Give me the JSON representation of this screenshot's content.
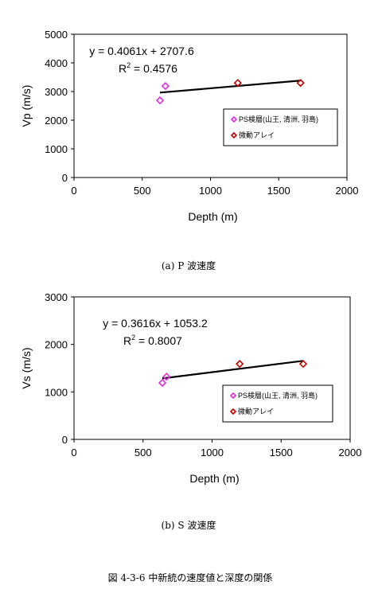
{
  "chart_data": [
    {
      "type": "scatter",
      "title": "",
      "xlabel": "Depth (m)",
      "ylabel": "Vp (m/s)",
      "xlim": [
        0,
        2000
      ],
      "ylim": [
        0,
        5000
      ],
      "xticks": [
        0,
        500,
        1000,
        1500,
        2000
      ],
      "yticks": [
        0,
        1000,
        2000,
        3000,
        4000,
        5000
      ],
      "xtick_labels": [
        "0",
        "500",
        "1000",
        "1500",
        "2000"
      ],
      "ytick_labels": [
        "0",
        "1000",
        "2000",
        "3000",
        "4000",
        "5000"
      ],
      "grid": false,
      "legend_placement": "right",
      "series": [
        {
          "name": "PS検層(山王, 清洲, 羽島)",
          "color": "#e02ce0",
          "marker": "diamond-open",
          "x": [
            630,
            670
          ],
          "y": [
            2690,
            3190
          ]
        },
        {
          "name": "微動アレイ",
          "color": "#c00000",
          "marker": "diamond-open",
          "x": [
            1200,
            1660
          ],
          "y": [
            3300,
            3300
          ]
        }
      ],
      "trendline": {
        "slope": 0.4061,
        "intercept": 2707.6,
        "x_range": [
          630,
          1660
        ],
        "color": "#000000"
      },
      "equation": "y = 0.4061x + 2707.6",
      "r2_prefix": "R",
      "r2_sup": "2",
      "r2_value": " = 0.4576",
      "caption": "(a)   P 波速度"
    },
    {
      "type": "scatter",
      "title": "",
      "xlabel": "Depth (m)",
      "ylabel": "Vs (m/s)",
      "xlim": [
        0,
        2000
      ],
      "ylim": [
        0,
        3000
      ],
      "xticks": [
        0,
        500,
        1000,
        1500,
        2000
      ],
      "yticks": [
        0,
        1000,
        2000,
        3000
      ],
      "xtick_labels": [
        "0",
        "500",
        "1000",
        "1500",
        "2000"
      ],
      "ytick_labels": [
        "0",
        "1000",
        "2000",
        "3000"
      ],
      "grid": false,
      "legend_placement": "right",
      "series": [
        {
          "name": "PS検層(山王, 清洲, 羽島)",
          "color": "#e02ce0",
          "marker": "diamond-open",
          "x": [
            640,
            670
          ],
          "y": [
            1190,
            1320
          ]
        },
        {
          "name": "微動アレイ",
          "color": "#c00000",
          "marker": "diamond-open",
          "x": [
            1200,
            1660
          ],
          "y": [
            1590,
            1590
          ]
        }
      ],
      "trendline": {
        "slope": 0.3616,
        "intercept": 1053.2,
        "x_range": [
          640,
          1660
        ],
        "color": "#000000"
      },
      "equation": "y = 0.3616x + 1053.2",
      "r2_prefix": "R",
      "r2_sup": "2",
      "r2_value": " = 0.8007",
      "caption": "(b)   S 波速度"
    }
  ],
  "figure_caption": "図 4-3-6  中新統の速度値と深度の関係"
}
